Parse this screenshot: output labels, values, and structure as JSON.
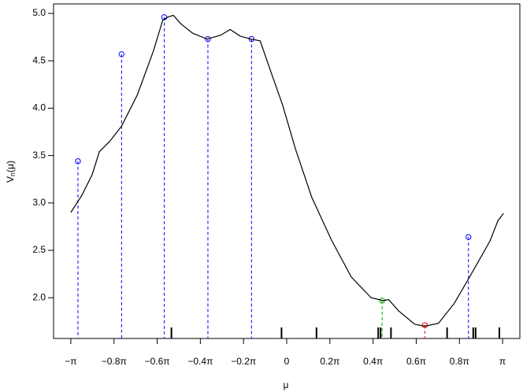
{
  "chart_data": {
    "type": "line",
    "xlabel": "μ",
    "ylabel": [
      "V",
      "n",
      "(μ)"
    ],
    "xlim": [
      -1.08,
      1.08
    ],
    "ylim": [
      1.57,
      5.1
    ],
    "xticks": [
      {
        "value": -1,
        "label": "−π"
      },
      {
        "value": -0.8,
        "label": "−0.8π"
      },
      {
        "value": -0.6,
        "label": "−0.6π"
      },
      {
        "value": -0.4,
        "label": "−0.4π"
      },
      {
        "value": -0.2,
        "label": "−0.2π"
      },
      0,
      {
        "value": 0.2,
        "label": "0.2π"
      },
      {
        "value": 0.4,
        "label": "0.4π"
      },
      {
        "value": 0.6,
        "label": "0.6π"
      },
      {
        "value": 0.8,
        "label": "0.8π"
      },
      {
        "value": 1,
        "label": "π"
      }
    ],
    "yticks": [
      {
        "value": 2,
        "label": "2.0"
      },
      {
        "value": 2.5,
        "label": "2.5"
      },
      {
        "value": 3,
        "label": "3.0"
      },
      {
        "value": 3.5,
        "label": "3.5"
      },
      {
        "value": 4,
        "label": "4.0"
      },
      {
        "value": 4.5,
        "label": "4.5"
      },
      {
        "value": 5,
        "label": "5.0"
      }
    ],
    "series": [
      {
        "color": "#000000",
        "x": [
          -1.0,
          -0.949,
          -0.901,
          -0.868,
          -0.82,
          -0.765,
          -0.692,
          -0.618,
          -0.574,
          -0.552,
          -0.525,
          -0.49,
          -0.435,
          -0.369,
          -0.306,
          -0.262,
          -0.215,
          -0.167,
          -0.123,
          -0.068,
          -0.02,
          0.042,
          0.116,
          0.207,
          0.299,
          0.391,
          0.446,
          0.472,
          0.519,
          0.593,
          0.64,
          0.703,
          0.776,
          0.85,
          0.942,
          0.978,
          1.004
        ],
        "values": [
          2.9,
          3.08,
          3.3,
          3.54,
          3.65,
          3.81,
          4.14,
          4.6,
          4.93,
          4.96,
          4.98,
          4.89,
          4.79,
          4.73,
          4.77,
          4.83,
          4.76,
          4.73,
          4.71,
          4.35,
          4.04,
          3.56,
          3.06,
          2.61,
          2.22,
          2.0,
          1.97,
          1.98,
          1.86,
          1.72,
          1.7,
          1.73,
          1.94,
          2.23,
          2.6,
          2.81,
          2.89
        ]
      }
    ],
    "stems": [
      {
        "color": "#0000ff",
        "x": [
          -0.967,
          -0.765,
          -0.567,
          -0.365,
          -0.163,
          0.842
        ],
        "values": [
          3.44,
          4.57,
          4.96,
          4.73,
          4.73,
          2.64
        ]
      },
      {
        "color": "#00b000",
        "x": [
          0.442
        ],
        "values": [
          1.97
        ]
      },
      {
        "color": "#ff0000",
        "x": [
          0.64
        ],
        "values": [
          1.71
        ]
      }
    ],
    "rug": [
      -0.534,
      -0.024,
      0.138,
      0.424,
      0.435,
      0.483,
      0.743,
      0.864,
      0.875,
      0.985
    ]
  }
}
